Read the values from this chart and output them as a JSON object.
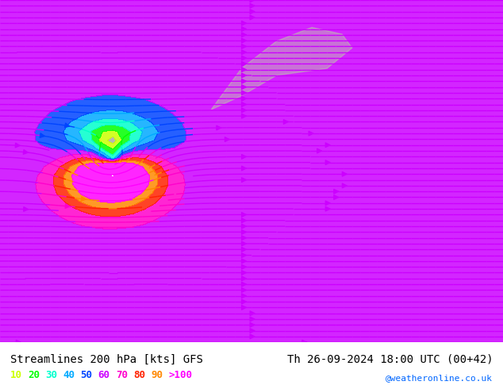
{
  "title_left": "Streamlines 200 hPa [kts] GFS",
  "title_right": "Th 26-09-2024 18:00 UTC (00+42)",
  "credit": "@weatheronline.co.uk",
  "legend_values": [
    "10",
    "20",
    "30",
    "40",
    "50",
    "60",
    "70",
    "80",
    "90",
    ">100"
  ],
  "legend_colors": [
    "#ccff00",
    "#00ff00",
    "#00ffcc",
    "#00ccff",
    "#0066ff",
    "#cc00ff",
    "#ff00cc",
    "#ff0000",
    "#ff6600",
    "#ff0000"
  ],
  "speed_colors": {
    "0": "#cccccc",
    "10": "#ccff00",
    "20": "#00ff00",
    "30": "#00ffcc",
    "40": "#00ccff",
    "50": "#0066ff",
    "60": "#cc00ff",
    "70": "#ff00cc",
    "80": "#ff0000",
    "90": "#ff6600",
    "100": "#ff0000"
  },
  "background_color": "#ffffff",
  "map_bg_light": "#d4edda",
  "map_bg_gray": "#e8e8e8",
  "figsize": [
    6.34,
    4.9
  ],
  "dpi": 100
}
